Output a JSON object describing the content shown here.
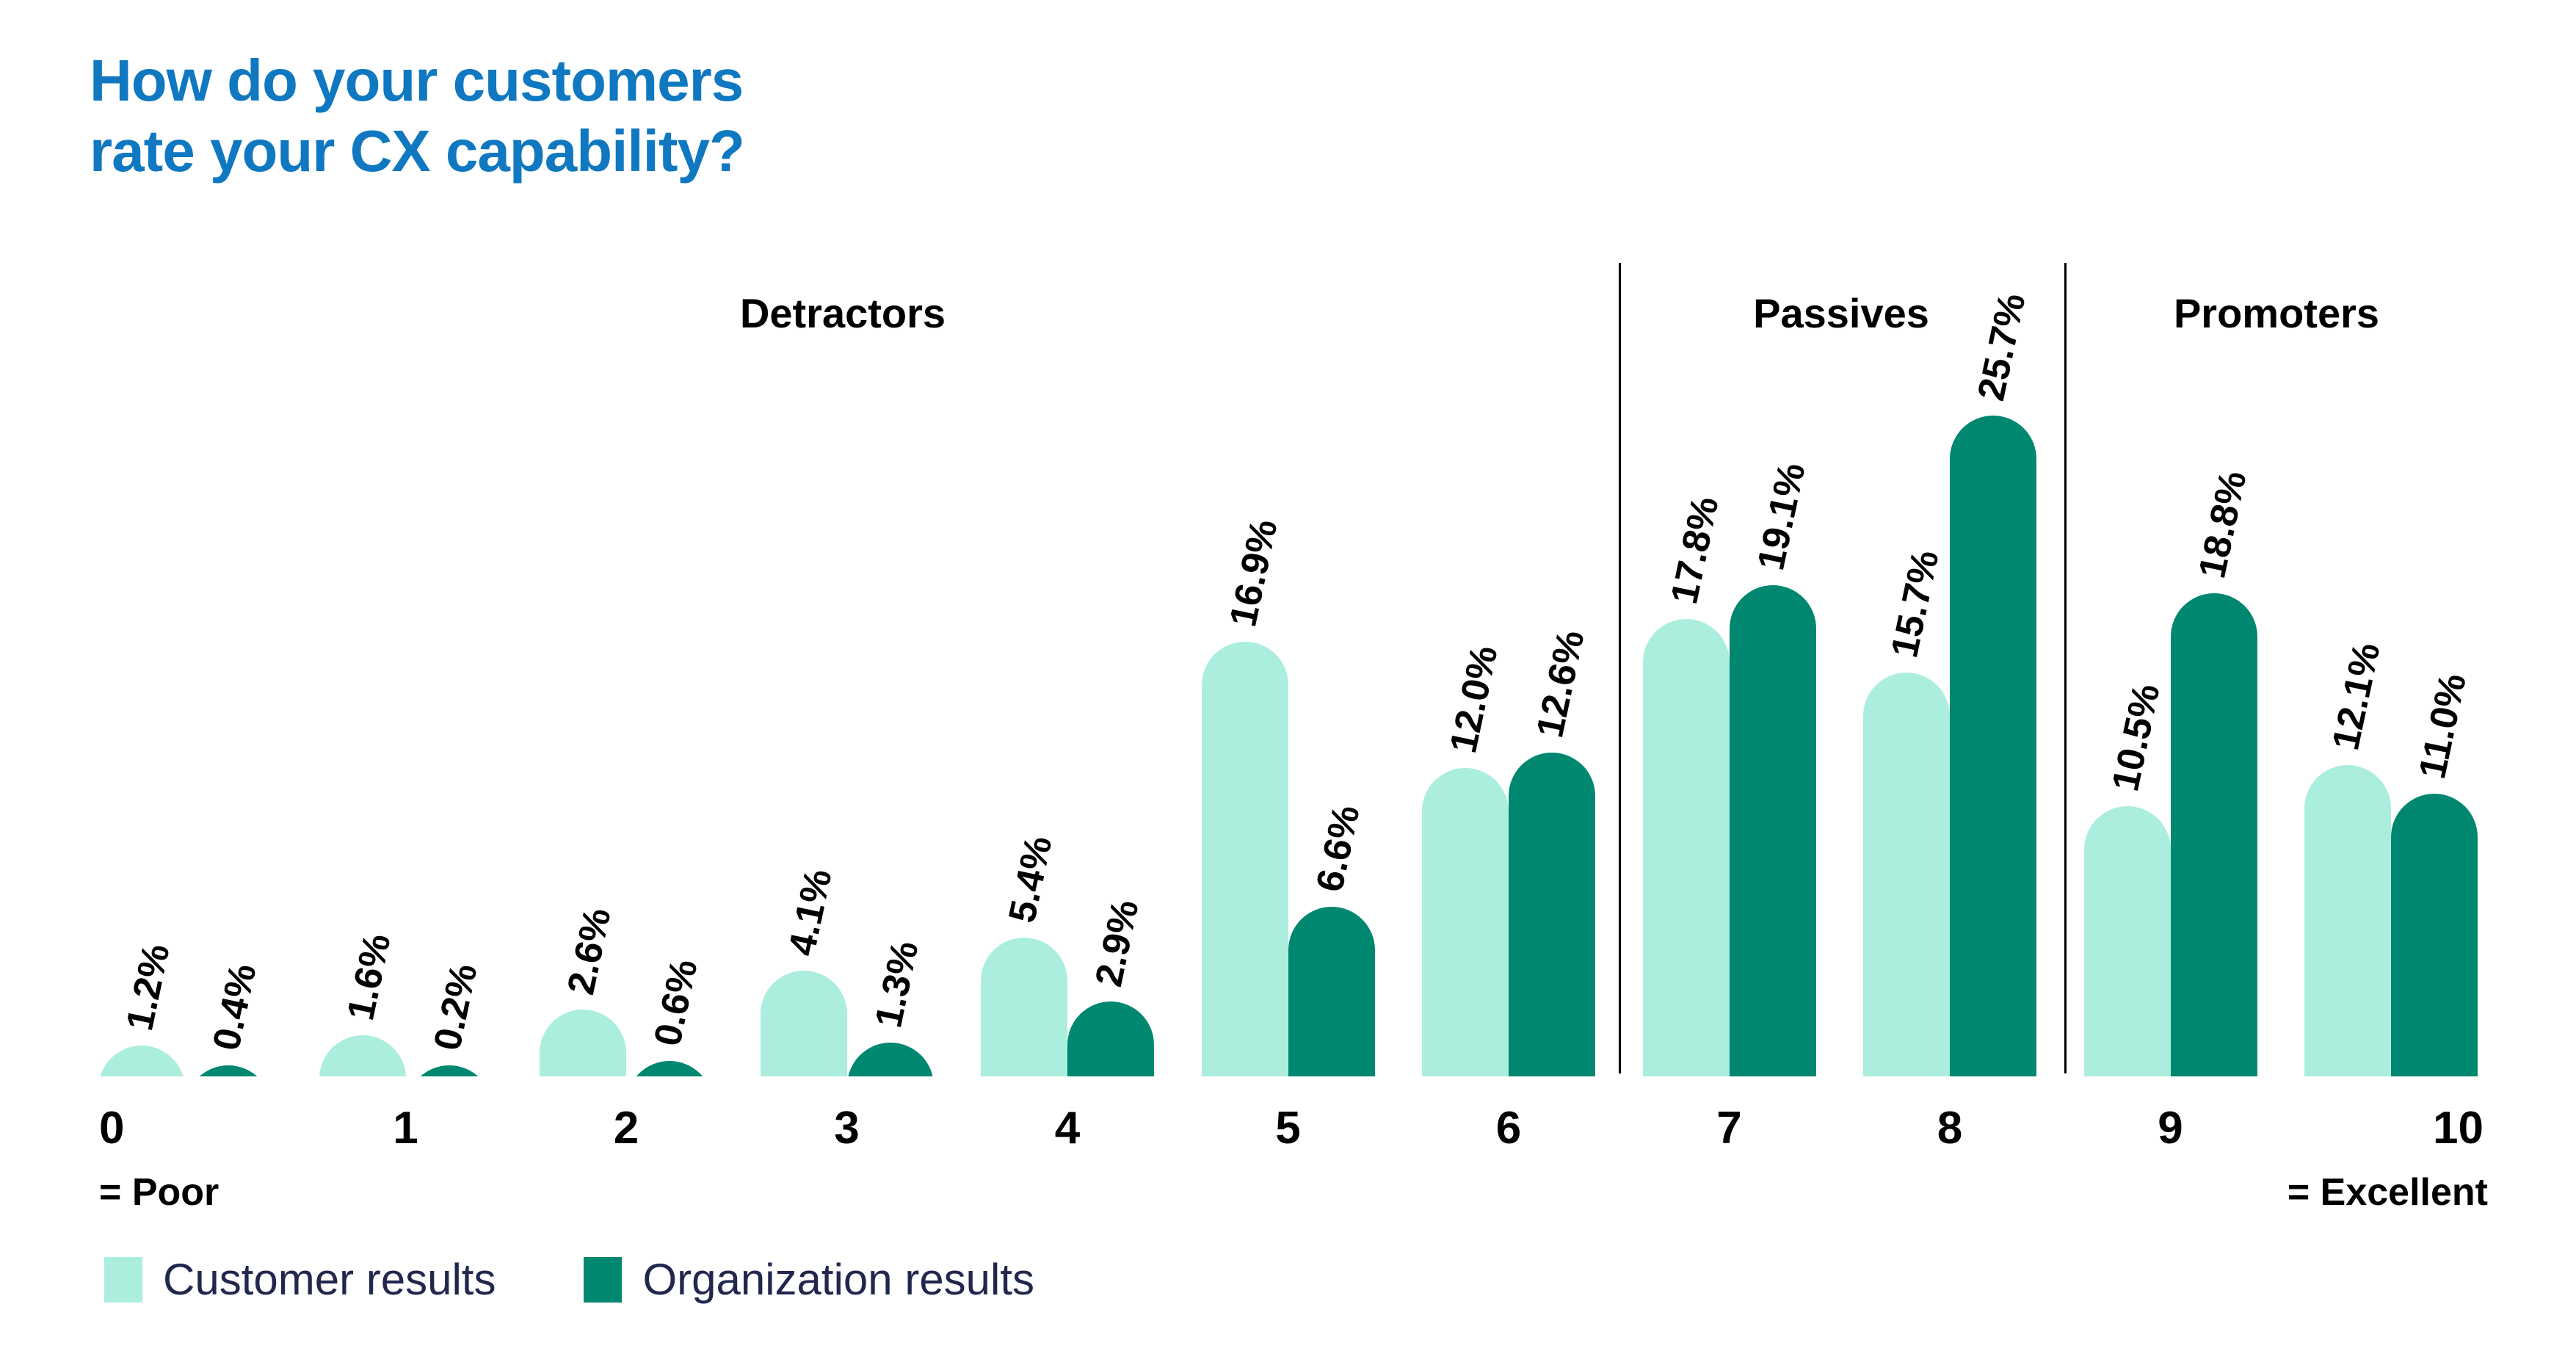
{
  "title": {
    "line1": "How do your customers",
    "line2": "rate your CX capability?"
  },
  "colors": {
    "title_blue": "#0F78C0",
    "customer_light_teal": "#ABEEDE",
    "organization_dark_teal": "#008770",
    "label_black": "#000000",
    "legend_text_navy": "#22274E",
    "divider_black": "#000000"
  },
  "x_axis": {
    "ticks": [
      "0",
      "1",
      "2",
      "3",
      "4",
      "5",
      "6",
      "7",
      "8",
      "9",
      "10"
    ],
    "left_note": "= Poor",
    "right_note": "= Excellent"
  },
  "legend": {
    "items": [
      {
        "label": "Customer results",
        "swatch": "customer-swatch"
      },
      {
        "label": "Organization results",
        "swatch": "organization-swatch"
      }
    ]
  },
  "chart_data": {
    "type": "bar",
    "title": "How do your customers rate your CX capability?",
    "categories": [
      "0",
      "1",
      "2",
      "3",
      "4",
      "5",
      "6",
      "7",
      "8",
      "9",
      "10"
    ],
    "series": [
      {
        "name": "Customer results",
        "color": "#ABEEDE",
        "values": [
          1.2,
          1.6,
          2.6,
          4.1,
          5.4,
          16.9,
          12.0,
          17.8,
          15.7,
          10.5,
          12.1
        ],
        "labels": [
          "1.2%",
          "1.6%",
          "2.6%",
          "4.1%",
          "5.4%",
          "16.9%",
          "12.0%",
          "17.8%",
          "15.7%",
          "10.5%",
          "12.1%"
        ]
      },
      {
        "name": "Organization results",
        "color": "#008770",
        "values": [
          0.4,
          0.2,
          0.6,
          1.3,
          2.9,
          6.6,
          12.6,
          19.1,
          25.7,
          18.8,
          11.0
        ],
        "labels": [
          "0.4%",
          "0.2%",
          "0.6%",
          "1.3%",
          "2.9%",
          "6.6%",
          "12.6%",
          "19.1%",
          "25.7%",
          "18.8%",
          "11.0%"
        ]
      }
    ],
    "sections": [
      {
        "label": "Detractors",
        "from_category": "0",
        "to_category": "6"
      },
      {
        "label": "Passives",
        "from_category": "7",
        "to_category": "8"
      },
      {
        "label": "Promoters",
        "from_category": "9",
        "to_category": "10"
      }
    ],
    "xlabel": "",
    "ylabel": "",
    "unit": "%",
    "ylim": [
      0,
      26
    ],
    "grid": false,
    "value_label_rotation_deg": -78,
    "legend_position": "bottom-left",
    "axis_end_notes": {
      "0": "= Poor",
      "10": "= Excellent"
    }
  }
}
